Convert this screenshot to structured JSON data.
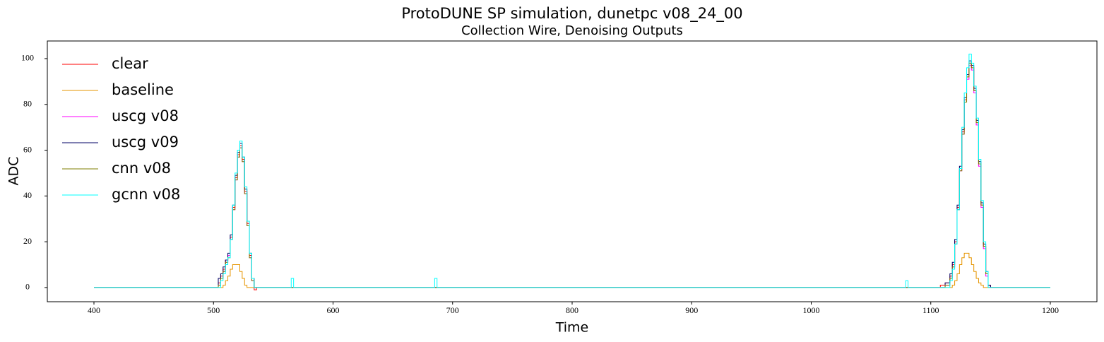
{
  "chart_data": {
    "type": "step",
    "title": "ProtoDUNE SP simulation, dunetpc v08_24_00",
    "subtitle": "Collection Wire, Denoising Outputs",
    "x_label": "Time",
    "y_label": "ADC",
    "xlim": [
      361,
      1239
    ],
    "ylim": [
      -6.2,
      107.7
    ],
    "xticks": [
      400,
      500,
      600,
      700,
      800,
      900,
      1000,
      1100,
      1200
    ],
    "yticks": [
      0,
      20,
      40,
      60,
      80,
      100
    ],
    "legend": "upper left",
    "x": [
      400,
      500,
      504,
      506,
      508,
      510,
      512,
      514,
      516,
      518,
      520,
      522,
      524,
      526,
      528,
      530,
      532,
      534,
      536,
      565,
      567,
      684,
      685,
      687,
      1078,
      1079,
      1081,
      1108,
      1112,
      1116,
      1118,
      1120,
      1122,
      1124,
      1126,
      1128,
      1130,
      1132,
      1134,
      1136,
      1138,
      1140,
      1142,
      1144,
      1146,
      1148,
      1150,
      1200
    ],
    "series": [
      {
        "name": "clear",
        "color": "#ff0000",
        "values": [
          0,
          0,
          2,
          5,
          8,
          12,
          14,
          22,
          35,
          48,
          58,
          62,
          56,
          42,
          28,
          14,
          4,
          -1,
          0,
          0,
          0,
          0,
          0,
          0,
          0,
          0,
          0,
          1,
          2,
          5,
          10,
          20,
          35,
          52,
          68,
          82,
          92,
          98,
          96,
          86,
          72,
          54,
          36,
          18,
          6,
          1,
          0,
          0
        ]
      },
      {
        "name": "baseline",
        "color": "#e69500",
        "values": [
          0,
          0,
          0,
          0,
          1,
          3,
          5,
          8,
          10,
          10,
          10,
          7,
          4,
          1,
          0,
          0,
          0,
          0,
          0,
          0,
          0,
          0,
          0,
          0,
          0,
          0,
          0,
          0,
          0,
          0,
          1,
          3,
          6,
          10,
          13,
          15,
          15,
          13,
          10,
          7,
          4,
          2,
          1,
          0,
          0,
          0,
          0,
          0
        ]
      },
      {
        "name": "uscg v08",
        "color": "#ff00ff",
        "values": [
          0,
          0,
          1,
          4,
          7,
          11,
          14,
          21,
          34,
          47,
          57,
          61,
          55,
          41,
          27,
          13,
          3,
          0,
          0,
          0,
          0,
          0,
          0,
          0,
          0,
          0,
          0,
          0,
          1,
          4,
          9,
          19,
          34,
          51,
          67,
          81,
          91,
          97,
          95,
          85,
          71,
          53,
          35,
          17,
          5,
          0,
          0,
          0
        ]
      },
      {
        "name": "uscg v09",
        "color": "#000066",
        "values": [
          0,
          0,
          4,
          6,
          9,
          12,
          15,
          23,
          36,
          49,
          59,
          63,
          57,
          43,
          29,
          15,
          4,
          0,
          0,
          0,
          0,
          0,
          0,
          0,
          0,
          0,
          0,
          0,
          2,
          6,
          11,
          21,
          36,
          53,
          69,
          83,
          93,
          99,
          97,
          87,
          73,
          55,
          37,
          19,
          7,
          1,
          0,
          0
        ]
      },
      {
        "name": "cnn v08",
        "color": "#7f7f00",
        "values": [
          0,
          0,
          1,
          4,
          7,
          11,
          13,
          21,
          34,
          47,
          57,
          61,
          55,
          41,
          27,
          13,
          3,
          0,
          0,
          0,
          0,
          0,
          0,
          0,
          0,
          0,
          0,
          0,
          1,
          4,
          9,
          19,
          34,
          51,
          67,
          81,
          92,
          98,
          96,
          86,
          72,
          54,
          36,
          18,
          6,
          0,
          0,
          0
        ]
      },
      {
        "name": "gcnn v08",
        "color": "#00ffff",
        "values": [
          0,
          0,
          0,
          3,
          6,
          10,
          13,
          21,
          36,
          50,
          60,
          64,
          57,
          44,
          29,
          15,
          4,
          0,
          0,
          4,
          0,
          0,
          4,
          0,
          0,
          3,
          0,
          0,
          0,
          3,
          8,
          19,
          34,
          52,
          70,
          85,
          96,
          102,
          98,
          88,
          74,
          56,
          38,
          20,
          7,
          0,
          0,
          0
        ]
      }
    ]
  }
}
